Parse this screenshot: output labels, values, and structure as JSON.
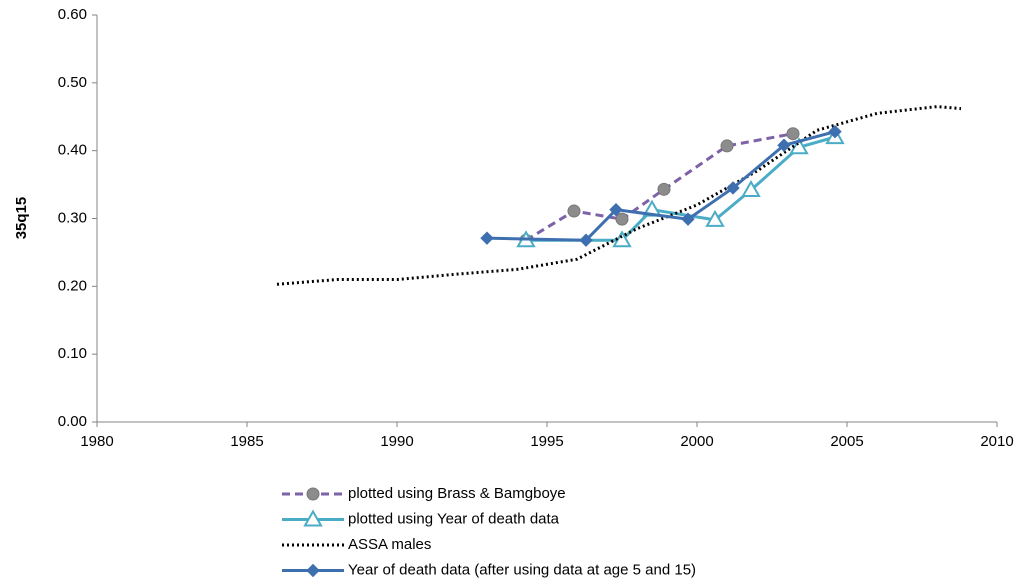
{
  "chart_data": {
    "type": "line",
    "y_label": "35q15",
    "xlim": [
      1980,
      2010
    ],
    "xticks": [
      1980,
      1985,
      1990,
      1995,
      2000,
      2005,
      2010
    ],
    "ylim": [
      0,
      0.6
    ],
    "yticks": [
      {
        "value": 0,
        "label": "0.00"
      },
      {
        "value": 0.1,
        "label": "0.10"
      },
      {
        "value": 0.2,
        "label": "0.20"
      },
      {
        "value": 0.3,
        "label": "0.30"
      },
      {
        "value": 0.4,
        "label": "0.40"
      },
      {
        "value": 0.5,
        "label": "0.50"
      },
      {
        "value": 0.6,
        "label": "0.60"
      }
    ],
    "grid": false,
    "legend": "bottom",
    "series": [
      {
        "name": "plotted using Brass & Bamgboye",
        "color": "#7e62a8",
        "marker_color": "#8c8c8c",
        "line_style": "dashed",
        "marker": "circle",
        "x": [
          1994.3,
          1995.9,
          1997.5,
          1998.9,
          2001.0,
          2003.2
        ],
        "values": [
          0.268,
          0.311,
          0.299,
          0.343,
          0.407,
          0.425
        ]
      },
      {
        "name": "plotted using Year of death data",
        "color": "#4bacc6",
        "marker_color": "#4bacc6",
        "line_style": "solid",
        "marker": "triangle",
        "x": [
          1994.3,
          1997.5,
          1998.5,
          2000.6,
          2001.8,
          2003.4,
          2004.6
        ],
        "values": [
          0.268,
          0.268,
          0.313,
          0.298,
          0.342,
          0.405,
          0.42
        ]
      },
      {
        "name": "ASSA males",
        "color": "#000000",
        "line_style": "dotted",
        "marker": "none",
        "x": [
          1986,
          1988,
          1990,
          1992,
          1994,
          1996,
          1998,
          2000,
          2002,
          2004,
          2006,
          2008,
          2008.8
        ],
        "values": [
          0.203,
          0.21,
          0.21,
          0.218,
          0.225,
          0.24,
          0.285,
          0.32,
          0.37,
          0.43,
          0.455,
          0.465,
          0.462
        ]
      },
      {
        "name": "Year of death data (after using data at age 5 and 15)",
        "color": "#3e70b0",
        "marker_color": "#3e70b0",
        "line_style": "solid",
        "marker": "diamond",
        "x": [
          1993.0,
          1996.3,
          1997.3,
          1999.7,
          2001.2,
          2002.9,
          2004.6
        ],
        "values": [
          0.271,
          0.268,
          0.313,
          0.299,
          0.345,
          0.408,
          0.428
        ]
      }
    ]
  }
}
